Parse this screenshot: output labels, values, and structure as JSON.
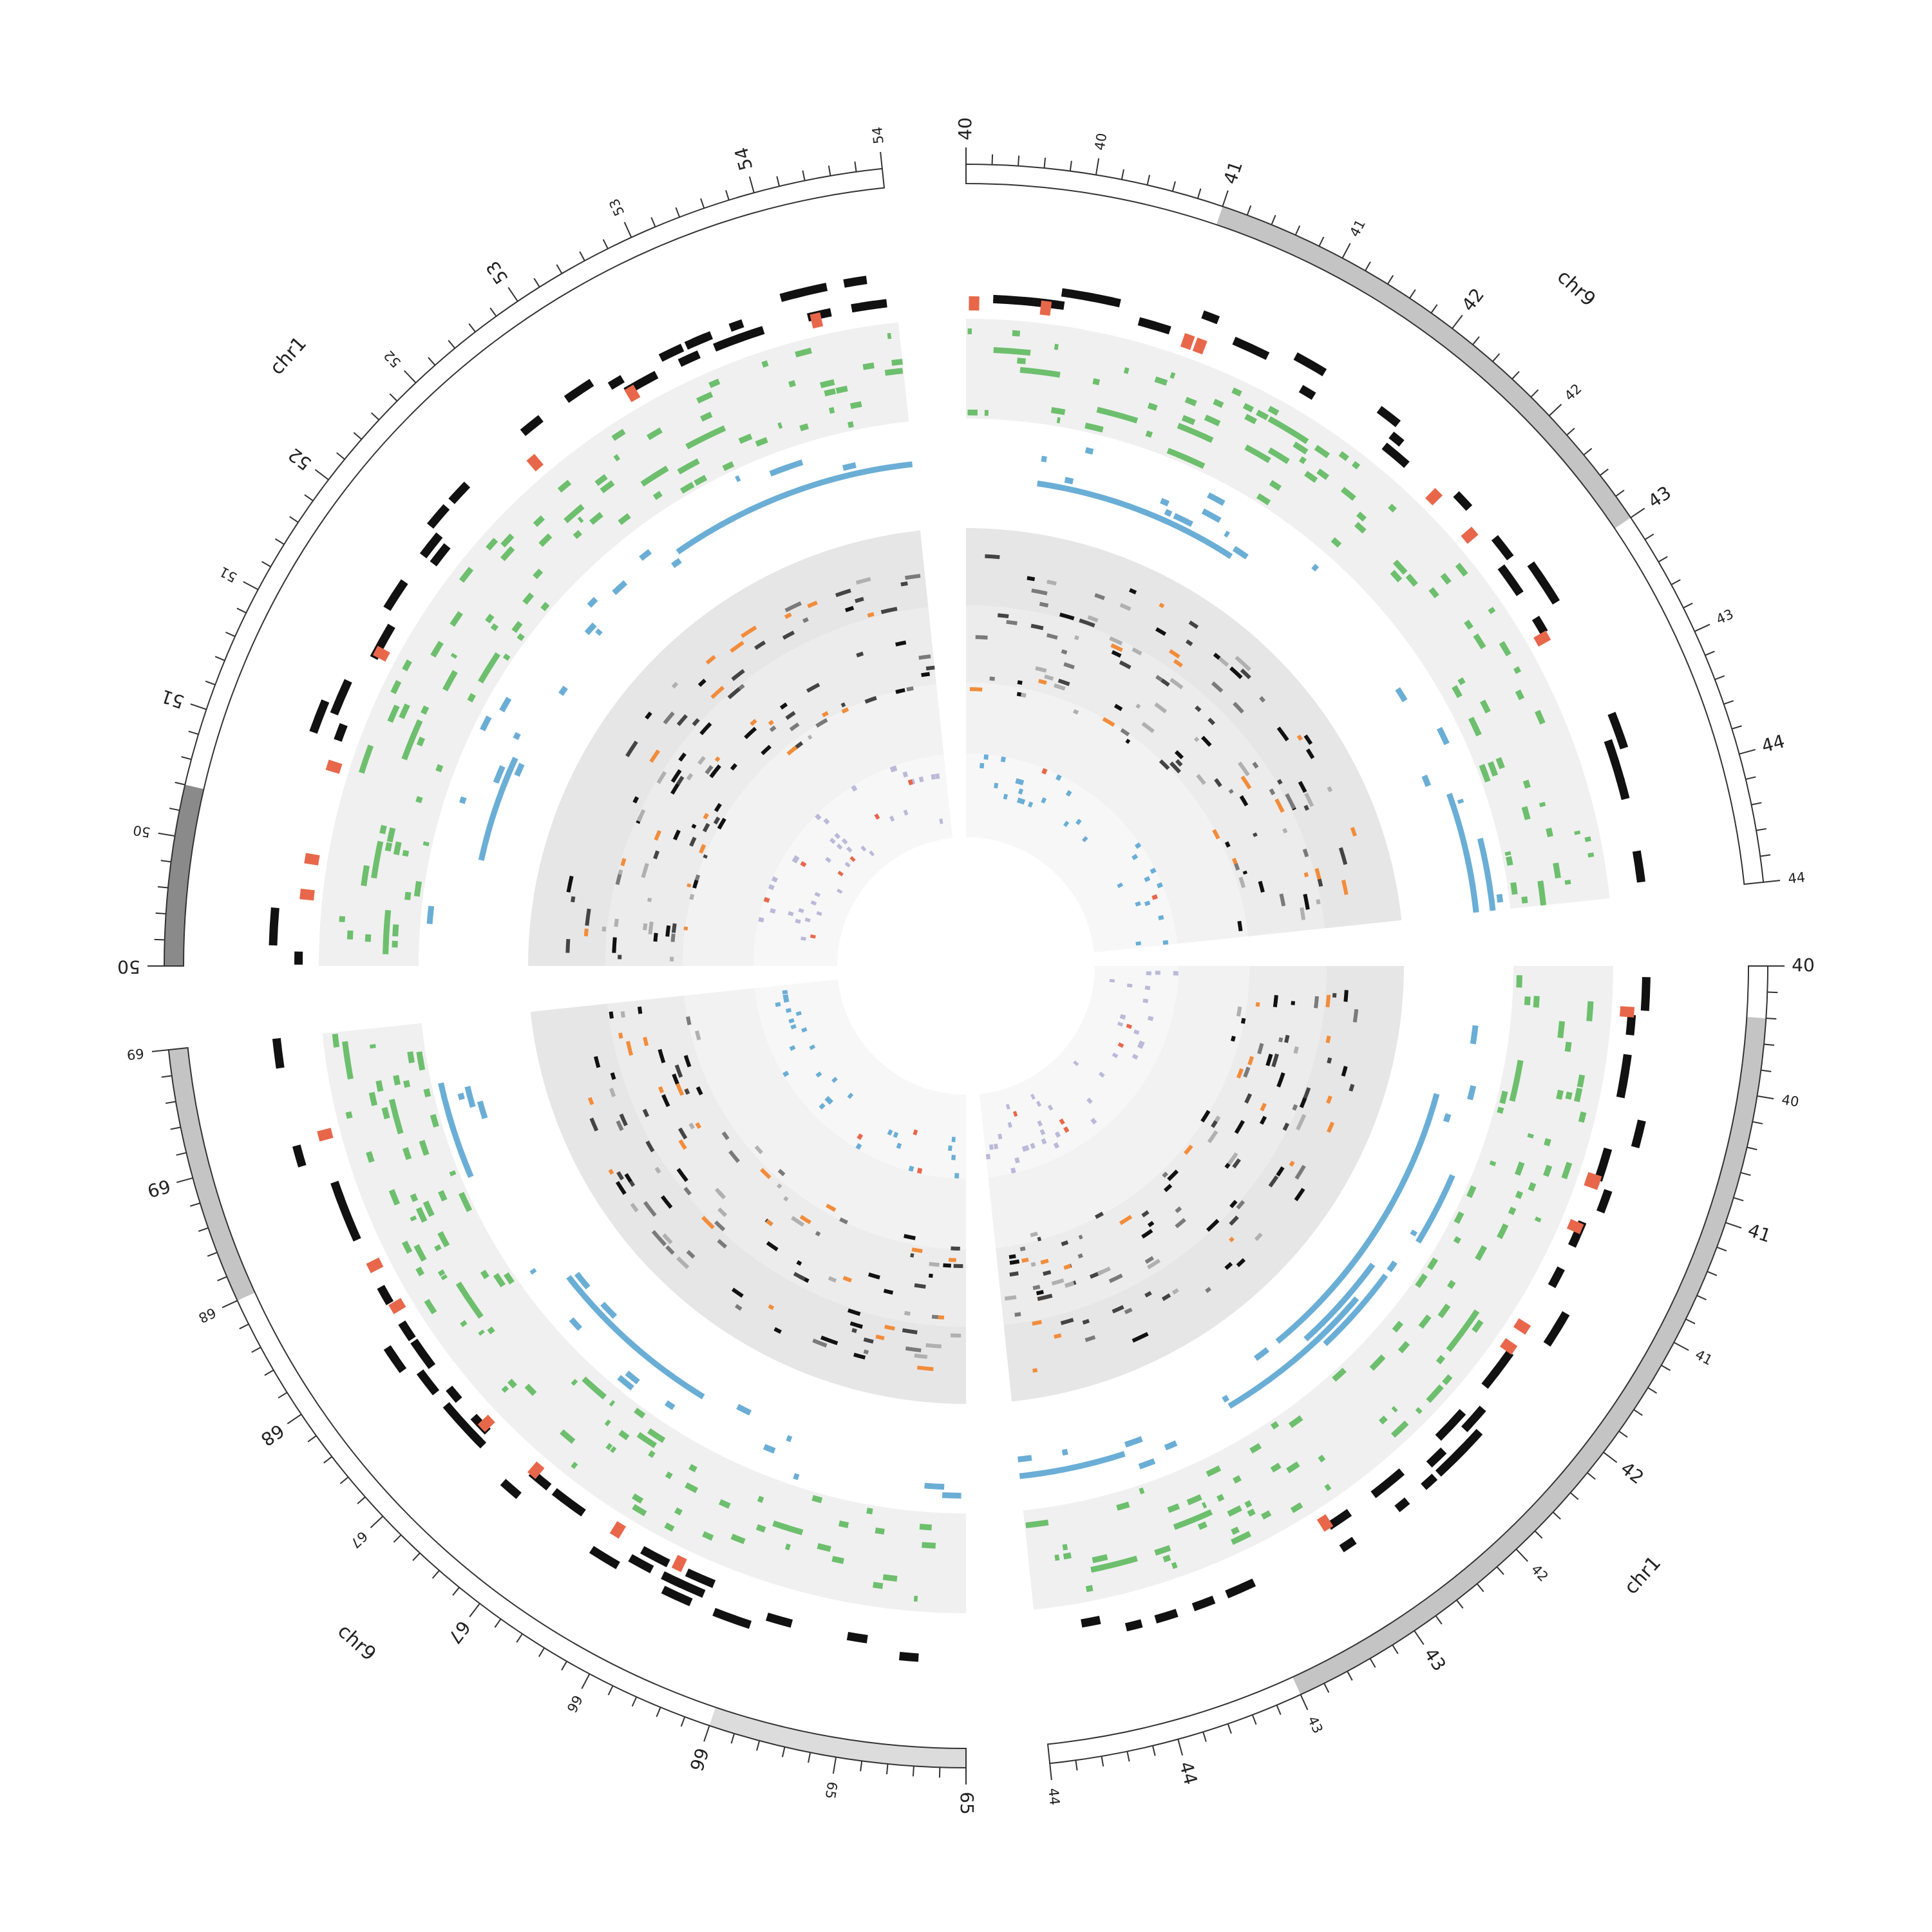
{
  "chart_data": {
    "type": "circos",
    "title": "",
    "colors": {
      "ideogram_fill": "#ffffff",
      "ideogram_stroke": "#333333",
      "band_light": "#dcdcdc",
      "band_mid": "#c4c4c4",
      "band_dark": "#8a8a8a",
      "black_track": "#111111",
      "red_track": "#e8674a",
      "green_track": "#6dbf6d",
      "blue_track": "#6aaed6",
      "orange_track": "#f28c3a",
      "gray_dark": "#444444",
      "gray_mid": "#7a7a7a",
      "gray_light": "#b0b0b0",
      "lavender_track": "#bbb9d9",
      "track_bg": "#f0f0f0",
      "bg_ring_a": "#e6e6e6",
      "bg_ring_b": "#ececec",
      "bg_ring_c": "#f2f2f2",
      "bg_ring_d": "#f7f7f7"
    },
    "segments": [
      {
        "id": "chr9-a",
        "label": "chr9",
        "start": 40,
        "end": 44.5,
        "angle_start": 0,
        "angle_end": 84,
        "bands": [
          {
            "start": 41,
            "end": 43,
            "shade": "mid"
          }
        ],
        "major_ticks": [
          {
            "label": "40",
            "value": 40
          },
          {
            "label": "41",
            "value": 41
          },
          {
            "label": "42",
            "value": 42
          },
          {
            "label": "43",
            "value": 43
          },
          {
            "label": "44",
            "value": 44
          }
        ],
        "minor_ticks": [
          {
            "label": "40",
            "value": 40.5
          },
          {
            "label": "41",
            "value": 41.5
          },
          {
            "label": "42",
            "value": 42.5
          },
          {
            "label": "43",
            "value": 43.5
          },
          {
            "label": "44",
            "value": 44.5
          }
        ]
      },
      {
        "id": "chr1-b",
        "label": "chr1",
        "start": 40,
        "end": 44.5,
        "angle_start": 90,
        "angle_end": 174,
        "bands": [
          {
            "start": 40,
            "end": 40.2,
            "shade": "none"
          },
          {
            "start": 40.2,
            "end": 43.5,
            "shade": "mid"
          }
        ],
        "major_ticks": [
          {
            "label": "40",
            "value": 40
          },
          {
            "label": "41",
            "value": 41
          },
          {
            "label": "42",
            "value": 42
          },
          {
            "label": "43",
            "value": 43
          },
          {
            "label": "44",
            "value": 44
          }
        ],
        "minor_ticks": [
          {
            "label": "40",
            "value": 40.5
          },
          {
            "label": "41",
            "value": 41.5
          },
          {
            "label": "42",
            "value": 42.5
          },
          {
            "label": "43",
            "value": 43.5
          },
          {
            "label": "44",
            "value": 44.5
          }
        ]
      },
      {
        "id": "chr9-c",
        "label": "chr9",
        "start": 65,
        "end": 69.5,
        "angle_start": 180,
        "angle_end": 264,
        "bands": [
          {
            "start": 65,
            "end": 66,
            "shade": "light"
          },
          {
            "start": 68.5,
            "end": 69.5,
            "shade": "mid"
          }
        ],
        "major_ticks": [
          {
            "label": "65",
            "value": 65
          },
          {
            "label": "66",
            "value": 66
          },
          {
            "label": "67",
            "value": 67
          },
          {
            "label": "68",
            "value": 68
          },
          {
            "label": "69",
            "value": 69
          }
        ],
        "minor_ticks": [
          {
            "label": "65",
            "value": 65.5
          },
          {
            "label": "66",
            "value": 66.5
          },
          {
            "label": "67",
            "value": 67.5
          },
          {
            "label": "68",
            "value": 68.5
          },
          {
            "label": "69",
            "value": 69.5
          }
        ]
      },
      {
        "id": "chr1-d",
        "label": "chr1",
        "start": 50,
        "end": 54.5,
        "angle_start": 270,
        "angle_end": 354,
        "bands": [
          {
            "start": 50,
            "end": 50.7,
            "shade": "dark"
          }
        ],
        "major_ticks": [
          {
            "label": "50",
            "value": 50
          },
          {
            "label": "51",
            "value": 51
          },
          {
            "label": "52",
            "value": 52
          },
          {
            "label": "53",
            "value": 53
          },
          {
            "label": "54",
            "value": 54
          }
        ],
        "minor_ticks": [
          {
            "label": "50",
            "value": 50.5
          },
          {
            "label": "51",
            "value": 51.5
          },
          {
            "label": "52",
            "value": 52.5
          },
          {
            "label": "53",
            "value": 53.5
          },
          {
            "label": "54",
            "value": 54.5
          }
        ]
      }
    ],
    "tracks": [
      {
        "name": "",
        "kind": "highlight",
        "color_key": "black_track",
        "rows": 3,
        "density": 30
      },
      {
        "name": "",
        "kind": "highlight",
        "color_key": "red_track",
        "rows": 1,
        "density": 7
      },
      {
        "name": "",
        "kind": "tile",
        "color_key": "green_track",
        "rows": 10,
        "density": 90
      },
      {
        "name": "",
        "kind": "tile",
        "color_key": "blue_track",
        "rows": 7,
        "density": 22
      },
      {
        "name": "",
        "kind": "tile",
        "color_key": "orange_track",
        "rows": 24,
        "density": 110
      },
      {
        "name": "",
        "kind": "scatter",
        "color_key": "blue_track",
        "rows": 5,
        "density": 30
      },
      {
        "name": "",
        "kind": "scatter",
        "color_key": "lavender_track",
        "rows": 8,
        "density": 45
      }
    ]
  }
}
